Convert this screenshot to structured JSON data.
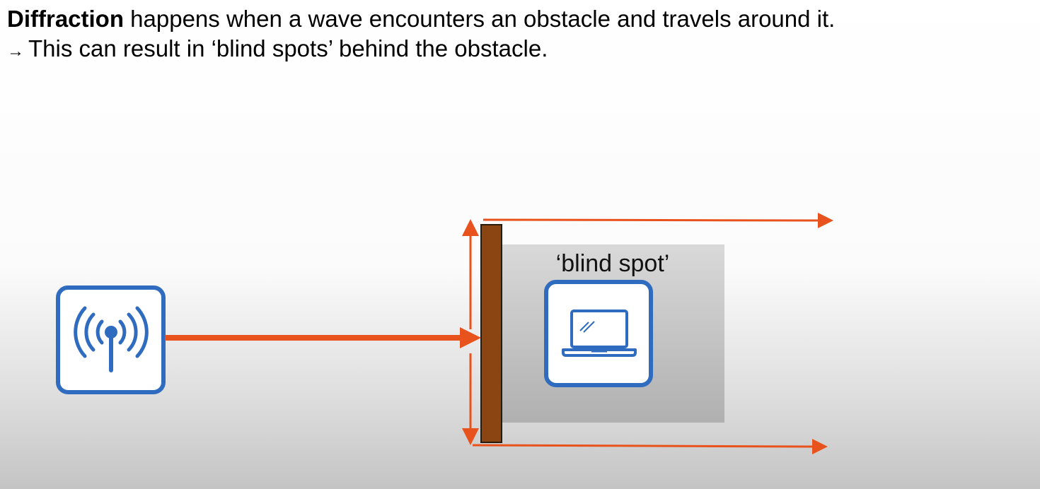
{
  "heading": {
    "term": "Diffraction",
    "definition": " happens when a wave encounters an obstacle and travels around it.",
    "arrow_symbol": "→",
    "consequence": "This can result in ‘blind spots’ behind the obstacle."
  },
  "diagram": {
    "blind_spot_label": "‘blind spot’",
    "transmitter_icon": "wireless-antenna-icon",
    "receiver_icon": "laptop-icon",
    "colors": {
      "wave": "#e8521c",
      "obstacle": "#8b4513",
      "icon_border": "#2f6bbf",
      "blind_spot_area": "#c8c8c8"
    }
  }
}
